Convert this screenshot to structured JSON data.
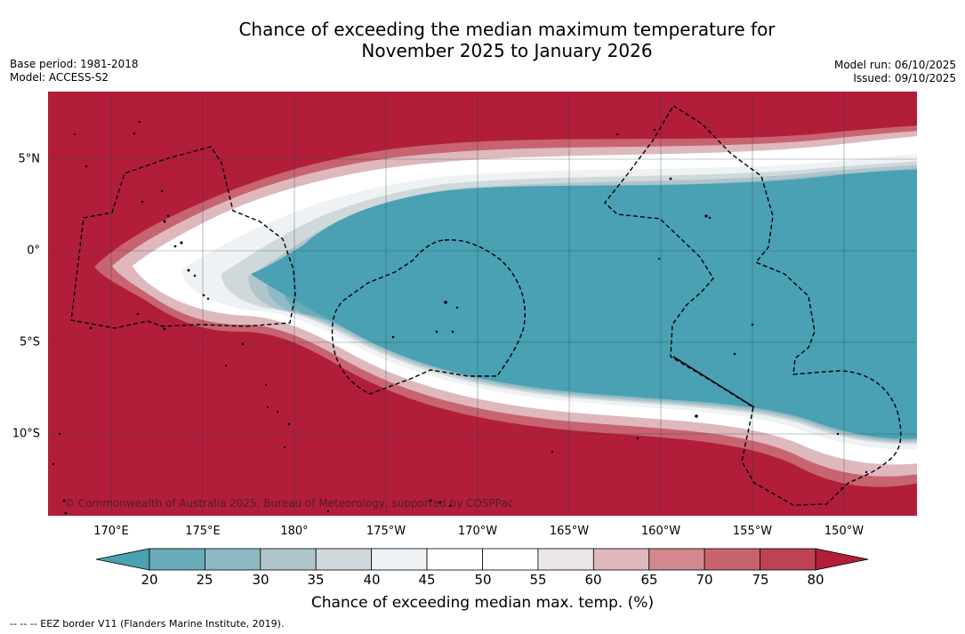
{
  "title_line1": "Chance of exceeding the median maximum temperature for",
  "title_line2": "November 2025 to January 2026",
  "base_period": "Base period: 1981-2018",
  "model": "Model: ACCESS-S2",
  "model_run": "Model run: 06/10/2025",
  "issued": "Issued: 09/10/2025",
  "copyright": "© Commonwealth of Australia 2025, Bureau of Meteorology, supported by COSPPac",
  "lon_labels": [
    "170°E",
    "175°E",
    "180°",
    "175°W",
    "170°W",
    "165°W",
    "160°W",
    "155°W",
    "150°W"
  ],
  "lat_labels": [
    "5°N",
    "0°",
    "5°S",
    "10°S"
  ],
  "colorbar": {
    "ticks": [
      "20",
      "25",
      "30",
      "35",
      "40",
      "45",
      "50",
      "55",
      "60",
      "65",
      "70",
      "75",
      "80"
    ],
    "label": "Chance of exceeding median max. temp. (%)",
    "colors": [
      "#49a1b3",
      "#6aabba",
      "#8db9c4",
      "#afc5cb",
      "#cfd9dc",
      "#eef2f4",
      "#ffffff",
      "#ffffff",
      "#ebe7e8",
      "#dfb8be",
      "#d3888f",
      "#c76470",
      "#bd4255",
      "#b21e39"
    ]
  },
  "legend_note": "-- -- -- EEZ border V11 (Flanders Marine Institute, 2019)."
}
